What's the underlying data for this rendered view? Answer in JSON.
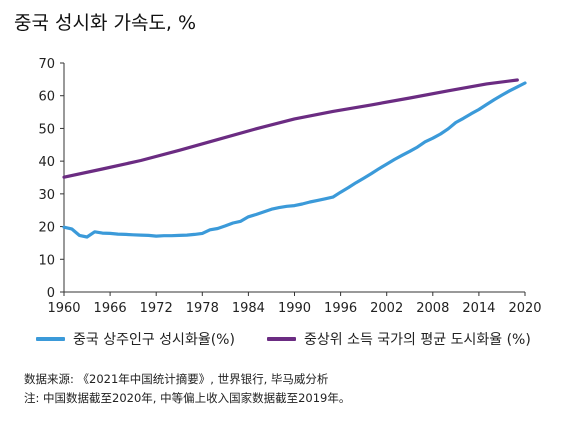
{
  "chart_data": {
    "type": "line",
    "title": "중국 성시화 가속도, %",
    "xlabel": "",
    "ylabel": "",
    "xlim": [
      1960,
      2020
    ],
    "ylim": [
      0,
      70
    ],
    "xticks": [
      "1960",
      "1966",
      "1972",
      "1978",
      "1984",
      "1990",
      "1996",
      "2002",
      "2008",
      "2014",
      "2020"
    ],
    "yticks": [
      "0",
      "10",
      "20",
      "30",
      "40",
      "50",
      "60",
      "70"
    ],
    "grid": false,
    "legend_position": "bottom",
    "series": [
      {
        "name": "중국 상주인구 성시화율(%)",
        "color": "#3b9ad9",
        "x": [
          1960,
          1961,
          1962,
          1963,
          1964,
          1965,
          1966,
          1967,
          1968,
          1969,
          1970,
          1971,
          1972,
          1973,
          1974,
          1975,
          1976,
          1977,
          1978,
          1979,
          1980,
          1981,
          1982,
          1983,
          1984,
          1985,
          1986,
          1987,
          1988,
          1989,
          1990,
          1991,
          1992,
          1993,
          1994,
          1995,
          1996,
          1997,
          1998,
          1999,
          2000,
          2001,
          2002,
          2003,
          2004,
          2005,
          2006,
          2007,
          2008,
          2009,
          2010,
          2011,
          2012,
          2013,
          2014,
          2015,
          2016,
          2017,
          2018,
          2019,
          2020
        ],
        "values": [
          19.8,
          19.3,
          17.3,
          16.8,
          18.4,
          18.0,
          17.9,
          17.7,
          17.6,
          17.5,
          17.4,
          17.3,
          17.1,
          17.2,
          17.2,
          17.3,
          17.4,
          17.6,
          17.9,
          19.0,
          19.4,
          20.2,
          21.1,
          21.6,
          23.0,
          23.7,
          24.5,
          25.3,
          25.8,
          26.2,
          26.4,
          26.9,
          27.5,
          28.0,
          28.5,
          29.0,
          30.5,
          31.9,
          33.4,
          34.8,
          36.2,
          37.7,
          39.1,
          40.5,
          41.8,
          43.0,
          44.3,
          45.9,
          47.0,
          48.3,
          49.9,
          51.8,
          53.1,
          54.5,
          55.8,
          57.3,
          58.8,
          60.2,
          61.5,
          62.7,
          63.9
        ]
      },
      {
        "name": "중상위 소득 국가의 평균 도시화율 (%)",
        "color": "#6b2c82",
        "x": [
          1960,
          1965,
          1970,
          1975,
          1980,
          1985,
          1990,
          1995,
          2000,
          2005,
          2010,
          2015,
          2019
        ],
        "values": [
          35.1,
          37.6,
          40.2,
          43.3,
          46.6,
          49.9,
          52.9,
          55.2,
          57.2,
          59.3,
          61.5,
          63.6,
          64.8
        ]
      }
    ]
  },
  "source_text": "数据来源: 《2021年中国统计摘要》, 世界银行, 毕马威分析",
  "note_text": "注: 中国数据截至2020年, 中等偏上收入国家数据截至2019年。"
}
